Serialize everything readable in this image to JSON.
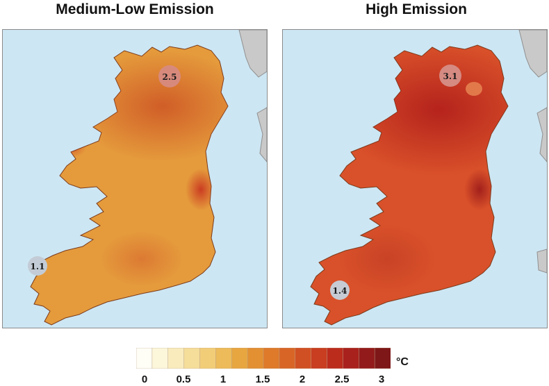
{
  "panels": [
    {
      "title": "Medium-Low Emission",
      "base_color": "#e59b3c",
      "north_color": "#cf5a26",
      "markers": [
        {
          "label": "2.5",
          "fill": "#d78a7c"
        },
        {
          "label": "1.1",
          "fill": "#c3ccd6"
        }
      ]
    },
    {
      "title": "High Emission",
      "base_color": "#d9512a",
      "north_color": "#b3201b",
      "markers": [
        {
          "label": "3.1",
          "fill": "#d58a82"
        },
        {
          "label": "1.4",
          "fill": "#c6cbd4"
        }
      ]
    }
  ],
  "sea_color": "#cde6f3",
  "land_neighbor_color": "#c9c9c9",
  "legend": {
    "unit": "°C",
    "range": [
      0,
      3
    ],
    "ticks": [
      "0",
      "0.5",
      "1",
      "1.5",
      "2",
      "2.5",
      "3"
    ],
    "colors": [
      "#fefdf6",
      "#fcf6da",
      "#f9ebbc",
      "#f5dd9a",
      "#f2cd78",
      "#edbb5a",
      "#e8a640",
      "#e39033",
      "#de7a2a",
      "#d86526",
      "#d15023",
      "#c93d20",
      "#bc2c1d",
      "#a9211c",
      "#931a1a",
      "#7e1718"
    ]
  }
}
